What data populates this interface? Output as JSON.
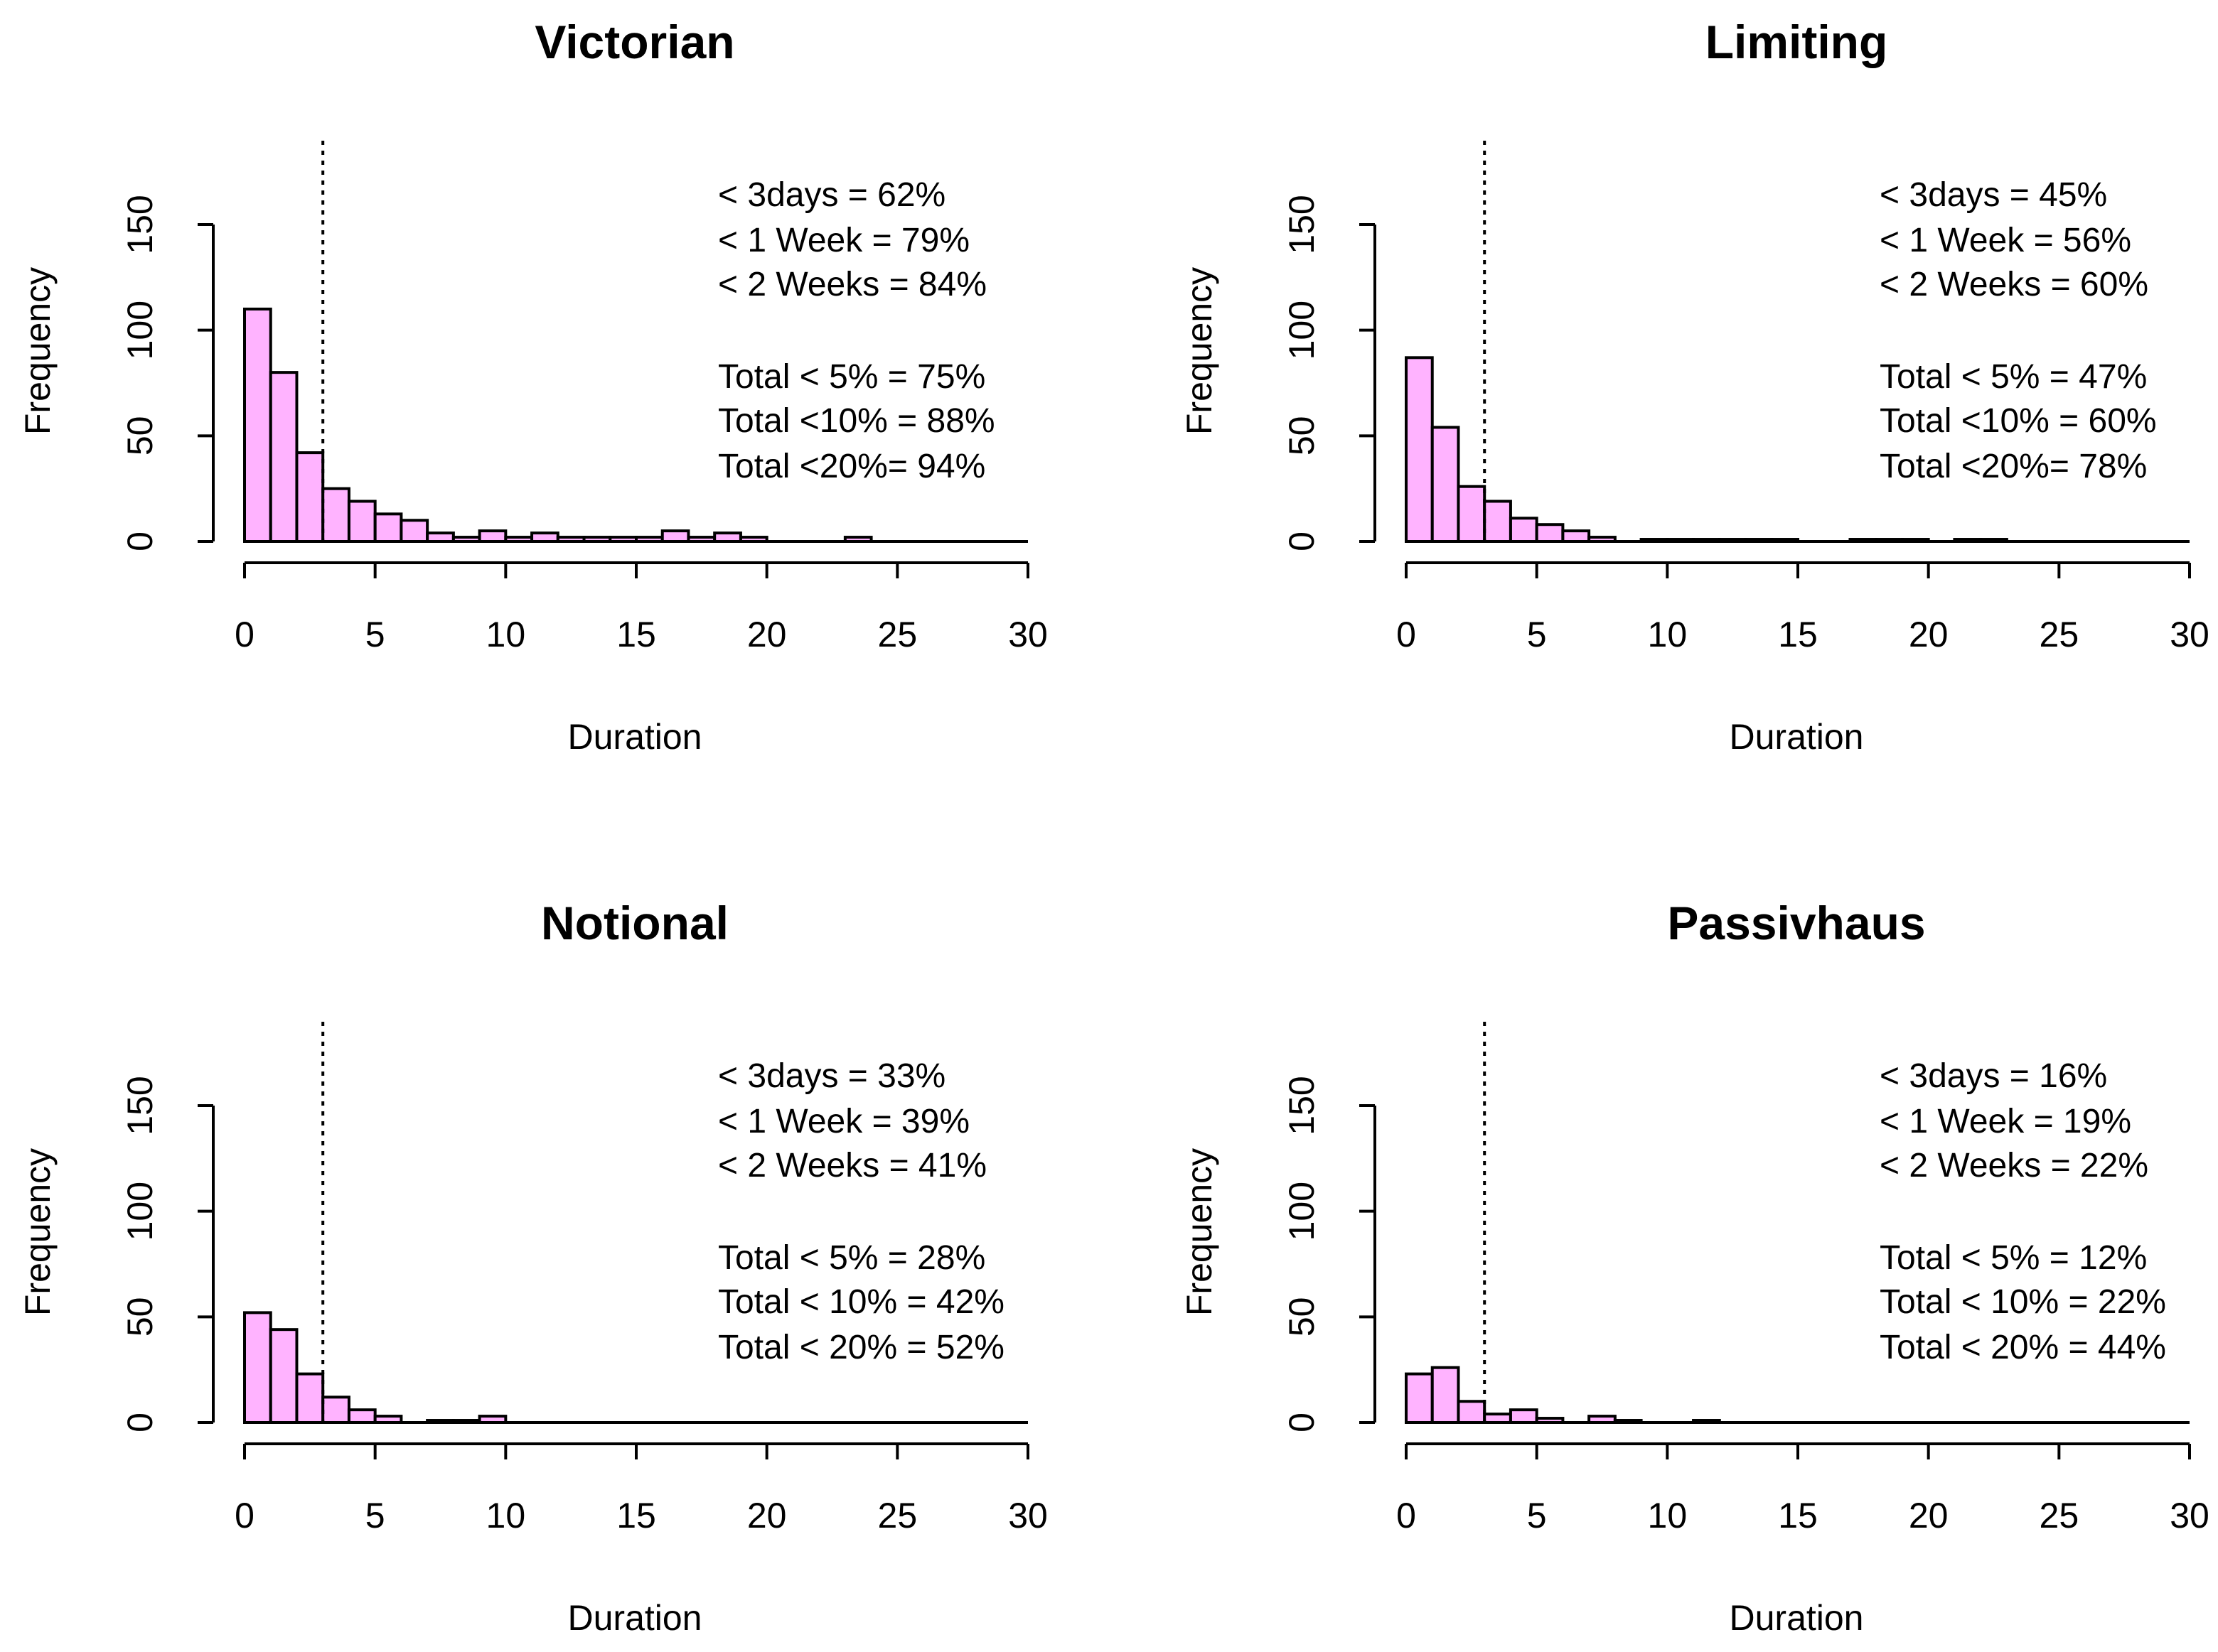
{
  "chart_data": [
    {
      "type": "bar",
      "title": "Victorian",
      "xlabel": "Duration",
      "ylabel": "Frequency",
      "xlim": [
        0,
        30
      ],
      "ylim": [
        0,
        150
      ],
      "xticks": [
        "0",
        "5",
        "10",
        "15",
        "20",
        "25",
        "30"
      ],
      "yticks": [
        "0",
        "50",
        "100",
        "150"
      ],
      "bin_width": 1,
      "values": [
        110,
        80,
        42,
        25,
        19,
        13,
        10,
        4,
        2,
        5,
        2,
        4,
        2,
        2,
        2,
        2,
        5,
        2,
        4,
        2,
        0,
        0,
        0,
        2,
        0,
        0,
        0,
        0,
        0,
        0
      ],
      "reference_line_x": 3,
      "annotations": [
        "< 3days = 62%",
        "< 1 Week = 79%",
        "< 2 Weeks = 84%",
        "Total < 5% = 75%",
        "Total <10% = 88%",
        "Total <20%= 94%"
      ]
    },
    {
      "type": "bar",
      "title": "Limiting",
      "xlabel": "Duration",
      "ylabel": "Frequency",
      "xlim": [
        0,
        30
      ],
      "ylim": [
        0,
        150
      ],
      "xticks": [
        "0",
        "5",
        "10",
        "15",
        "20",
        "25",
        "30"
      ],
      "yticks": [
        "0",
        "50",
        "100",
        "150"
      ],
      "bin_width": 1,
      "values": [
        87,
        54,
        26,
        19,
        11,
        8,
        5,
        2,
        0,
        1,
        1,
        1,
        1,
        1,
        1,
        0,
        0,
        1,
        1,
        1,
        0,
        1,
        1,
        0,
        0,
        0,
        0,
        0,
        0,
        0
      ],
      "reference_line_x": 3,
      "annotations": [
        "< 3days = 45%",
        "< 1 Week = 56%",
        "< 2 Weeks = 60%",
        "Total < 5% = 47%",
        "Total <10% = 60%",
        "Total <20%= 78%"
      ]
    },
    {
      "type": "bar",
      "title": "Notional",
      "xlabel": "Duration",
      "ylabel": "Frequency",
      "xlim": [
        0,
        30
      ],
      "ylim": [
        0,
        150
      ],
      "xticks": [
        "0",
        "5",
        "10",
        "15",
        "20",
        "25",
        "30"
      ],
      "yticks": [
        "0",
        "50",
        "100",
        "150"
      ],
      "bin_width": 1,
      "values": [
        52,
        44,
        23,
        12,
        6,
        3,
        0,
        1,
        1,
        3,
        0,
        0,
        0,
        0,
        0,
        0,
        0,
        0,
        0,
        0,
        0,
        0,
        0,
        0,
        0,
        0,
        0,
        0,
        0,
        0
      ],
      "reference_line_x": 3,
      "annotations": [
        "< 3days = 33%",
        "< 1 Week = 39%",
        "< 2 Weeks = 41%",
        "Total < 5% = 28%",
        "Total < 10% = 42%",
        "Total < 20% = 52%"
      ]
    },
    {
      "type": "bar",
      "title": "Passivhaus",
      "xlabel": "Duration",
      "ylabel": "Frequency",
      "xlim": [
        0,
        30
      ],
      "ylim": [
        0,
        150
      ],
      "xticks": [
        "0",
        "5",
        "10",
        "15",
        "20",
        "25",
        "30"
      ],
      "yticks": [
        "0",
        "50",
        "100",
        "150"
      ],
      "bin_width": 1,
      "values": [
        23,
        26,
        10,
        4,
        6,
        2,
        0,
        3,
        1,
        0,
        0,
        1,
        0,
        0,
        0,
        0,
        0,
        0,
        0,
        0,
        0,
        0,
        0,
        0,
        0,
        0,
        0,
        0,
        0,
        0
      ],
      "reference_line_x": 3,
      "annotations": [
        "< 3days = 16%",
        "< 1 Week = 19%",
        "< 2 Weeks = 22%",
        "Total < 5% = 12%",
        "Total < 10% = 22%",
        "Total < 20% = 44%"
      ]
    }
  ]
}
